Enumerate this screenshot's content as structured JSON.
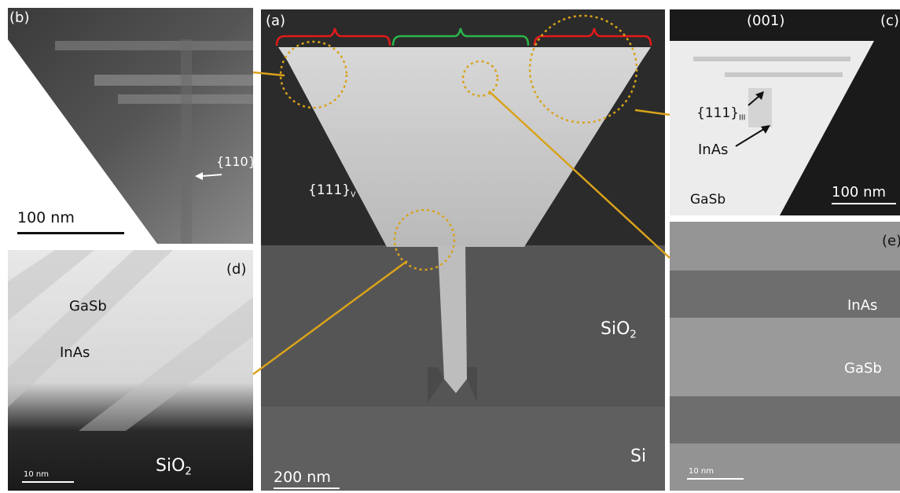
{
  "panels": {
    "a": {
      "label": "(a)",
      "facet": "{111}",
      "facet_sub": "V",
      "oxide": "SiO",
      "oxide_sub": "2",
      "substrate": "Si",
      "scalebar": "200 nm"
    },
    "b": {
      "label": "(b)",
      "facet": "{110}",
      "scalebar": "100 nm"
    },
    "c": {
      "label": "(c)",
      "orientation": "(001)",
      "facet": "{111}",
      "facet_sub": "III",
      "material_1": "InAs",
      "material_2": "GaSb",
      "scalebar": "100 nm"
    },
    "d": {
      "label": "(d)",
      "material_1": "GaSb",
      "material_2": "InAs",
      "oxide": "SiO",
      "oxide_sub": "2",
      "scalebar": "10 nm"
    },
    "e": {
      "label": "(e)",
      "material_1": "InAs",
      "material_2": "GaSb",
      "scalebar": "10 nm"
    }
  },
  "colors": {
    "bracket_side": "#e21a1a",
    "bracket_center": "#2bb54a",
    "zoom_marker": "#d9a21b"
  }
}
